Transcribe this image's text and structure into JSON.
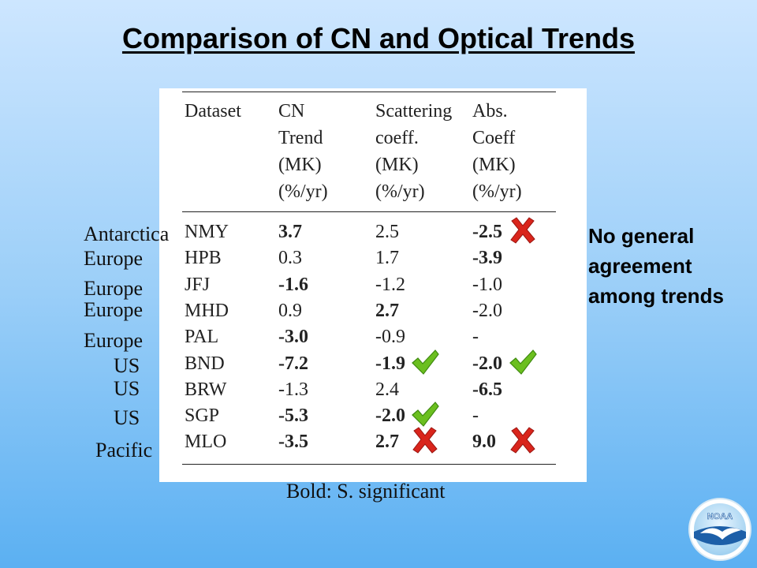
{
  "slide": {
    "title": "Comparison of CN and Optical Trends",
    "caption": "Bold: S. significant",
    "note": "No general agreement among trends",
    "logo_text": "NOAA"
  },
  "table": {
    "headers": [
      [
        "Dataset"
      ],
      [
        "CN",
        "Trend",
        "(MK)",
        "(%/yr)"
      ],
      [
        "Scattering",
        "coeff.",
        "(MK)",
        "(%/yr)"
      ],
      [
        "Abs.",
        "Coeff",
        "(MK)",
        "(%/yr)"
      ]
    ],
    "rows": [
      {
        "region": "Antarctica",
        "dataset": "NMY",
        "cn": "3.7",
        "cn_bold": true,
        "scat": "2.5",
        "scat_bold": false,
        "abs": "-2.5",
        "abs_bold": true,
        "scat_mark": "",
        "abs_mark": "cross"
      },
      {
        "region": "Europe",
        "dataset": "HPB",
        "cn": "0.3",
        "cn_bold": false,
        "scat": "1.7",
        "scat_bold": false,
        "abs": "-3.9",
        "abs_bold": true,
        "scat_mark": "",
        "abs_mark": ""
      },
      {
        "region": "Europe",
        "dataset": "JFJ",
        "cn": "-1.6",
        "cn_bold": true,
        "scat": "-1.2",
        "scat_bold": false,
        "abs": "-1.0",
        "abs_bold": false,
        "scat_mark": "",
        "abs_mark": ""
      },
      {
        "region": "Europe",
        "dataset": "MHD",
        "cn": "0.9",
        "cn_bold": false,
        "scat": "2.7",
        "scat_bold": true,
        "abs": "-2.0",
        "abs_bold": false,
        "scat_mark": "",
        "abs_mark": ""
      },
      {
        "region": "Europe",
        "dataset": "PAL",
        "cn": "-3.0",
        "cn_bold": true,
        "scat": "-0.9",
        "scat_bold": false,
        "abs": "-",
        "abs_bold": false,
        "scat_mark": "",
        "abs_mark": ""
      },
      {
        "region": "US",
        "dataset": "BND",
        "cn": "-7.2",
        "cn_bold": true,
        "scat": "-1.9",
        "scat_bold": true,
        "abs": "-2.0",
        "abs_bold": true,
        "scat_mark": "check",
        "abs_mark": "check"
      },
      {
        "region": "US",
        "dataset": "BRW",
        "cn": "-1.3",
        "cn_bold": false,
        "scat": "2.4",
        "scat_bold": false,
        "abs": "-6.5",
        "abs_bold": true,
        "scat_mark": "",
        "abs_mark": ""
      },
      {
        "region": "US",
        "dataset": "SGP",
        "cn": "-5.3",
        "cn_bold": true,
        "scat": "-2.0",
        "scat_bold": true,
        "abs": "-",
        "abs_bold": false,
        "scat_mark": "check",
        "abs_mark": ""
      },
      {
        "region": "Pacific",
        "dataset": "MLO",
        "cn": "-3.5",
        "cn_bold": true,
        "scat": "2.7",
        "scat_bold": true,
        "abs": "9.0",
        "abs_bold": true,
        "scat_mark": "cross",
        "abs_mark": "cross"
      }
    ]
  },
  "icons": {
    "check": "check-icon",
    "cross": "cross-icon"
  },
  "colors": {
    "check": "#6bbf1f",
    "cross": "#d9251c",
    "background_top": "#cde6ff",
    "background_bottom": "#5bb0f2"
  }
}
